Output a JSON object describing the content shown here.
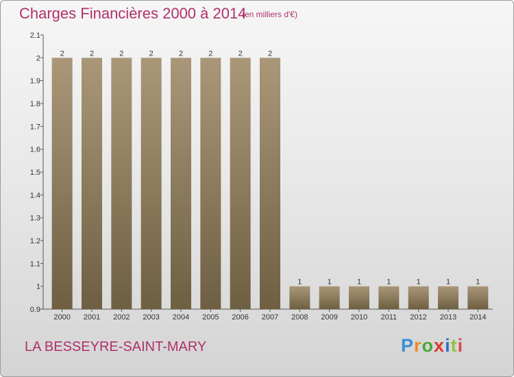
{
  "header": {
    "title": "Charges Financières 2000 à 2014",
    "subtitle": "(en milliers d'€)"
  },
  "footer": {
    "commune": "LA BESSEYRE-SAINT-MARY",
    "logo_text": "Proxiti"
  },
  "colors": {
    "accent": "#b0306a",
    "bar_top": "#a99778",
    "bar_bottom": "#6f5f42"
  },
  "chart_data": {
    "type": "bar",
    "title": "Charges Financières 2000 à 2014",
    "subtitle": "(en milliers d'€)",
    "categories": [
      "2000",
      "2001",
      "2002",
      "2003",
      "2004",
      "2005",
      "2006",
      "2007",
      "2008",
      "2009",
      "2010",
      "2011",
      "2012",
      "2013",
      "2014"
    ],
    "values": [
      2,
      2,
      2,
      2,
      2,
      2,
      2,
      2,
      1,
      1,
      1,
      1,
      1,
      1,
      1
    ],
    "data_labels": [
      "2",
      "2",
      "2",
      "2",
      "2",
      "2",
      "2",
      "2",
      "1",
      "1",
      "1",
      "1",
      "1",
      "1",
      "1"
    ],
    "ylim": [
      0.9,
      2.1
    ],
    "yticks": [
      0.9,
      1,
      1.1,
      1.2,
      1.3,
      1.4,
      1.5,
      1.6,
      1.7,
      1.8,
      1.9,
      2,
      2.1
    ],
    "ytick_labels": [
      "0.9",
      "1",
      "1.1",
      "1.2",
      "1.3",
      "1.4",
      "1.5",
      "1.6",
      "1.7",
      "1.8",
      "1.9",
      "2",
      "2.1"
    ],
    "grid": false,
    "legend": "none"
  }
}
